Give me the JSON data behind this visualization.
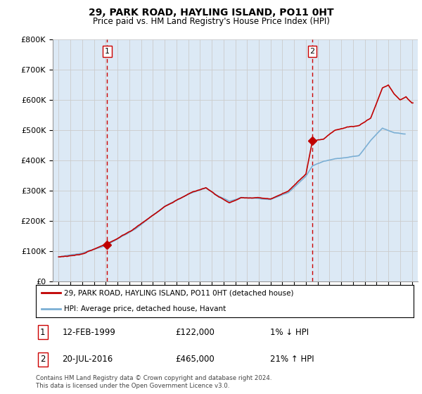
{
  "title": "29, PARK ROAD, HAYLING ISLAND, PO11 0HT",
  "subtitle": "Price paid vs. HM Land Registry's House Price Index (HPI)",
  "legend_line1": "29, PARK ROAD, HAYLING ISLAND, PO11 0HT (detached house)",
  "legend_line2": "HPI: Average price, detached house, Havant",
  "annotation1_date": "12-FEB-1999",
  "annotation1_price": "£122,000",
  "annotation1_hpi": "1% ↓ HPI",
  "annotation2_date": "20-JUL-2016",
  "annotation2_price": "£465,000",
  "annotation2_hpi": "21% ↑ HPI",
  "footer": "Contains HM Land Registry data © Crown copyright and database right 2024.\nThis data is licensed under the Open Government Licence v3.0.",
  "sale1_year": 1999.12,
  "sale1_value": 122000,
  "sale2_year": 2016.55,
  "sale2_value": 465000,
  "hpi_color": "#7bafd4",
  "price_color": "#c00000",
  "marker_color": "#c00000",
  "vline_color": "#cc0000",
  "plot_bg_color": "#dce9f5",
  "ylim": [
    0,
    800000
  ],
  "xlim": [
    1994.5,
    2025.5
  ],
  "background_color": "#ffffff",
  "grid_color": "#cccccc"
}
